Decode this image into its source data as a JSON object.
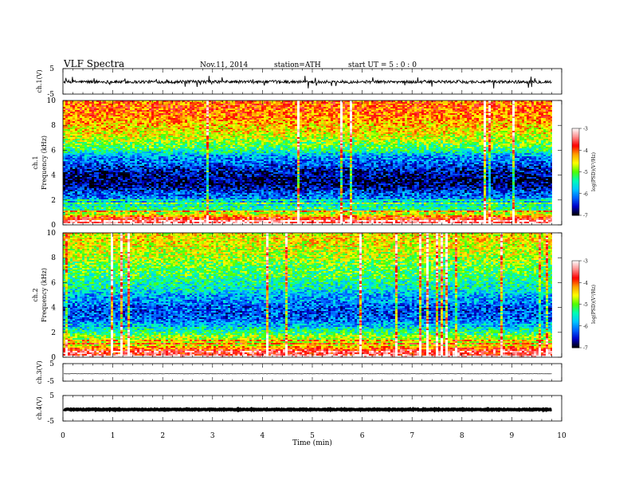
{
  "header": {
    "title": "VLF  Spectra",
    "date": "Nov.11, 2014",
    "station": "station=ATH",
    "start": "start  UT  =   5  : 0   : 0"
  },
  "x_axis": {
    "label": "Time  (min)",
    "ticks": [
      0,
      1,
      2,
      3,
      4,
      5,
      6,
      7,
      8,
      9,
      10
    ],
    "range": [
      0,
      10
    ],
    "data_end": 9.8
  },
  "panels": {
    "ch1_wave": {
      "ylabel": "ch.1(V)",
      "yticks": [
        "5",
        "-5"
      ],
      "range": [
        -5,
        5
      ]
    },
    "ch1_spec": {
      "ylabel_top": "ch.1",
      "ylabel": "Frequency  (kHz)",
      "yticks": [
        10,
        8,
        6,
        4,
        2,
        0
      ]
    },
    "ch2_spec": {
      "ylabel_top": "ch.2",
      "ylabel": "Frequency  (kHz)",
      "yticks": [
        10,
        8,
        6,
        4,
        2,
        0
      ]
    },
    "ch3_wave": {
      "ylabel": "ch.3(V)",
      "yticks": [
        "5",
        "-5"
      ],
      "range": [
        -5,
        5
      ]
    },
    "ch4_wave": {
      "ylabel": "ch.4(V)",
      "yticks": [
        "5",
        "-5"
      ],
      "range": [
        -5,
        5
      ]
    }
  },
  "colorbar": {
    "label": "log(PSD)(V²/Hz)",
    "ticks": [
      "-3",
      "-4",
      "-5",
      "-6",
      "-7"
    ],
    "range": [
      -7,
      -3
    ],
    "colors": [
      "#000000",
      "#0000c8",
      "#0064ff",
      "#00c8ff",
      "#00ffb4",
      "#50ff00",
      "#ffff00",
      "#ffa000",
      "#ff0000",
      "#ff8c8c",
      "#ffffff"
    ]
  },
  "chart_data": {
    "type": "heatmap",
    "title": "VLF  Spectra",
    "x": [
      0,
      1,
      2,
      3,
      4,
      5,
      6,
      7,
      8,
      9,
      9.8
    ],
    "xlabel": "Time  (min)",
    "xlim": [
      0,
      10
    ],
    "series": [
      {
        "name": "ch.1",
        "type": "heatmap",
        "ylabel": "Frequency  (kHz)",
        "ylim": [
          0,
          10
        ],
        "freq_khz": [
          0,
          0.5,
          1,
          1.5,
          2,
          2.5,
          3,
          3.5,
          4,
          4.5,
          5,
          5.5,
          6,
          6.5,
          7,
          7.5,
          8,
          8.5,
          9,
          9.5,
          10
        ],
        "log_psd_profile": [
          -3.4,
          -3.6,
          -4.9,
          -5.4,
          -6.0,
          -6.2,
          -6.7,
          -6.8,
          -6.7,
          -6.5,
          -6.2,
          -6.0,
          -5.3,
          -5.0,
          -4.7,
          -4.5,
          -4.4,
          -4.2,
          -4.1,
          -4.0,
          -4.1
        ]
      },
      {
        "name": "ch.2",
        "type": "heatmap",
        "ylabel": "Frequency  (kHz)",
        "ylim": [
          0,
          10
        ],
        "freq_khz": [
          0,
          0.5,
          1,
          1.5,
          2,
          2.5,
          3,
          3.5,
          4,
          4.5,
          5,
          5.5,
          6,
          6.5,
          7,
          7.5,
          8,
          8.5,
          9,
          9.5,
          10
        ],
        "log_psd_profile": [
          -3.4,
          -3.8,
          -4.5,
          -4.9,
          -5.3,
          -5.7,
          -6.2,
          -6.3,
          -6.3,
          -6.0,
          -5.9,
          -5.5,
          -5.4,
          -5.2,
          -5.1,
          -5.0,
          -4.8,
          -4.7,
          -4.6,
          -4.5,
          -4.6
        ]
      },
      {
        "name": "ch.1(V)",
        "type": "line",
        "ylim": [
          -5,
          5
        ],
        "mean": -0.2,
        "spread": 0.6
      },
      {
        "name": "ch.3(V)",
        "type": "line",
        "ylim": [
          -5,
          5
        ],
        "mean": -0.8,
        "spread": 0.05
      },
      {
        "name": "ch.4(V)",
        "type": "line",
        "ylim": [
          -5,
          5
        ],
        "mean": -0.5,
        "spread": 0.15
      }
    ]
  }
}
